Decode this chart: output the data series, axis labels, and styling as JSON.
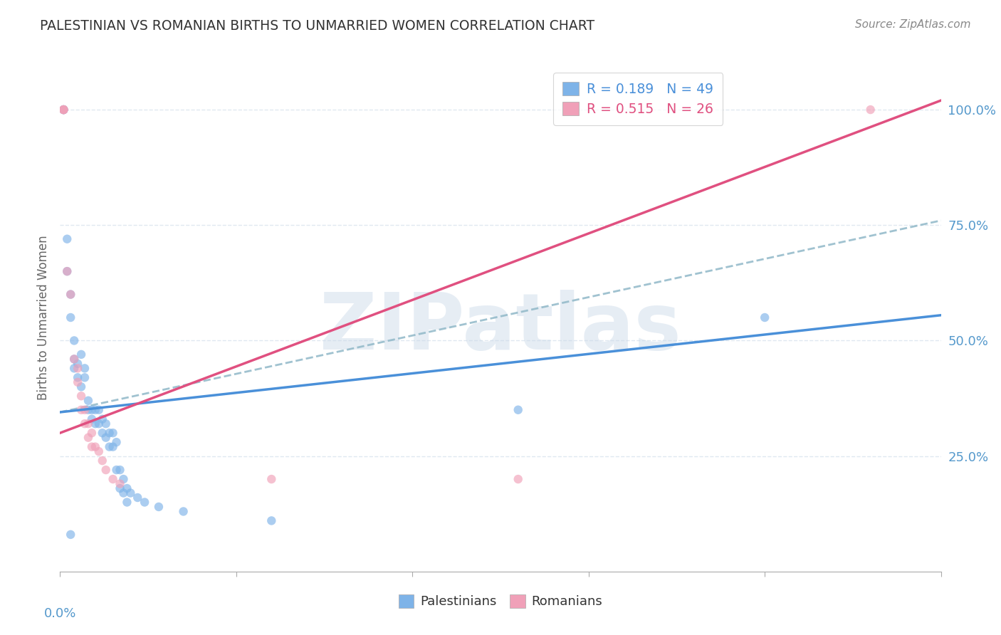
{
  "title": "PALESTINIAN VS ROMANIAN BIRTHS TO UNMARRIED WOMEN CORRELATION CHART",
  "source": "Source: ZipAtlas.com",
  "ylabel": "Births to Unmarried Women",
  "watermark": "ZIPatlas",
  "legend_entries": [
    {
      "label": "Palestinians",
      "color": "#7eb3e8",
      "R": 0.189,
      "N": 49
    },
    {
      "label": "Romanians",
      "color": "#f0a0b8",
      "R": 0.515,
      "N": 26
    }
  ],
  "ytick_labels": [
    "100.0%",
    "75.0%",
    "50.0%",
    "25.0%"
  ],
  "ytick_values": [
    1.0,
    0.75,
    0.5,
    0.25
  ],
  "xlim": [
    0.0,
    0.25
  ],
  "ylim": [
    0.0,
    1.1
  ],
  "blue_line": {
    "x0": 0.0,
    "y0": 0.345,
    "x1": 0.25,
    "y1": 0.555
  },
  "pink_line": {
    "x0": 0.0,
    "y0": 0.3,
    "x1": 0.25,
    "y1": 1.02
  },
  "dashed_line": {
    "x0": 0.0,
    "y0": 0.345,
    "x1": 0.25,
    "y1": 0.76
  },
  "palestinian_scatter": [
    [
      0.001,
      1.0
    ],
    [
      0.001,
      1.0
    ],
    [
      0.001,
      1.0
    ],
    [
      0.002,
      0.72
    ],
    [
      0.002,
      0.65
    ],
    [
      0.003,
      0.6
    ],
    [
      0.003,
      0.55
    ],
    [
      0.004,
      0.5
    ],
    [
      0.004,
      0.46
    ],
    [
      0.004,
      0.44
    ],
    [
      0.005,
      0.42
    ],
    [
      0.005,
      0.45
    ],
    [
      0.006,
      0.47
    ],
    [
      0.006,
      0.4
    ],
    [
      0.007,
      0.44
    ],
    [
      0.007,
      0.42
    ],
    [
      0.008,
      0.37
    ],
    [
      0.008,
      0.35
    ],
    [
      0.009,
      0.35
    ],
    [
      0.009,
      0.33
    ],
    [
      0.01,
      0.35
    ],
    [
      0.01,
      0.32
    ],
    [
      0.011,
      0.35
    ],
    [
      0.011,
      0.32
    ],
    [
      0.012,
      0.33
    ],
    [
      0.012,
      0.3
    ],
    [
      0.013,
      0.32
    ],
    [
      0.013,
      0.29
    ],
    [
      0.014,
      0.3
    ],
    [
      0.014,
      0.27
    ],
    [
      0.015,
      0.3
    ],
    [
      0.015,
      0.27
    ],
    [
      0.016,
      0.28
    ],
    [
      0.016,
      0.22
    ],
    [
      0.017,
      0.22
    ],
    [
      0.017,
      0.18
    ],
    [
      0.018,
      0.2
    ],
    [
      0.018,
      0.17
    ],
    [
      0.019,
      0.18
    ],
    [
      0.019,
      0.15
    ],
    [
      0.02,
      0.17
    ],
    [
      0.022,
      0.16
    ],
    [
      0.024,
      0.15
    ],
    [
      0.028,
      0.14
    ],
    [
      0.035,
      0.13
    ],
    [
      0.06,
      0.11
    ],
    [
      0.13,
      0.35
    ],
    [
      0.2,
      0.55
    ],
    [
      0.003,
      0.08
    ]
  ],
  "romanian_scatter": [
    [
      0.001,
      1.0
    ],
    [
      0.001,
      1.0
    ],
    [
      0.001,
      1.0
    ],
    [
      0.001,
      1.0
    ],
    [
      0.002,
      0.65
    ],
    [
      0.003,
      0.6
    ],
    [
      0.004,
      0.46
    ],
    [
      0.005,
      0.44
    ],
    [
      0.005,
      0.41
    ],
    [
      0.006,
      0.38
    ],
    [
      0.006,
      0.35
    ],
    [
      0.007,
      0.35
    ],
    [
      0.007,
      0.32
    ],
    [
      0.008,
      0.32
    ],
    [
      0.008,
      0.29
    ],
    [
      0.009,
      0.3
    ],
    [
      0.009,
      0.27
    ],
    [
      0.01,
      0.27
    ],
    [
      0.011,
      0.26
    ],
    [
      0.012,
      0.24
    ],
    [
      0.013,
      0.22
    ],
    [
      0.015,
      0.2
    ],
    [
      0.017,
      0.19
    ],
    [
      0.06,
      0.2
    ],
    [
      0.13,
      0.2
    ],
    [
      0.23,
      1.0
    ]
  ],
  "blue_line_color": "#4a90d9",
  "pink_line_color": "#e05080",
  "dashed_line_color": "#90b8c8",
  "grid_color": "#e0e8f0",
  "title_color": "#333333",
  "axis_label_color": "#5599cc",
  "background_color": "#ffffff",
  "scatter_blue": "#7eb3e8",
  "scatter_pink": "#f0a0b8",
  "scatter_size": 80,
  "scatter_alpha": 0.65,
  "scatter_linewidth": 1.2
}
